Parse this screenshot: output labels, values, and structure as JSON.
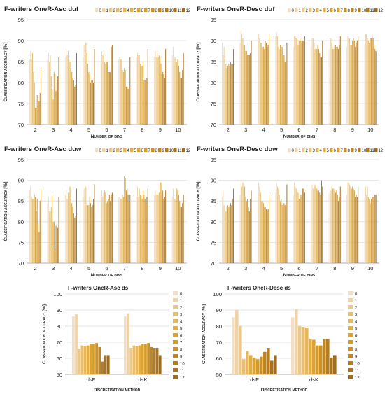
{
  "palette": [
    "#f3dfc5",
    "#efd3a8",
    "#ebc98b",
    "#e8bf72",
    "#e6b85b",
    "#e2ad45",
    "#dca232",
    "#d49a2a",
    "#cb9027",
    "#c08624",
    "#b57d22",
    "#aa741f",
    "#a06c1e"
  ],
  "chart_data": [
    {
      "type": "bar",
      "title": "F-writers OneR-Asc duf",
      "xlabel": "Number of bins",
      "ylabel": "Classification accuracy [%]",
      "ylim": [
        70,
        95
      ],
      "yticks": [
        70,
        75,
        80,
        85,
        90,
        95
      ],
      "grid": true,
      "legend_position": "top-right",
      "legend": [
        "0",
        "1",
        "2",
        "3",
        "4",
        "5",
        "6",
        "7",
        "8",
        "9",
        "10",
        "11",
        "12"
      ],
      "categories": [
        "2",
        "3",
        "4",
        "5",
        "6",
        "7",
        "8",
        "9",
        "10"
      ],
      "values": [
        [
          85.5,
          87.5,
          85.5,
          87.0,
          82.5,
          80.0,
          74.0,
          74.0,
          77.0,
          76.0,
          75.5,
          77.5,
          83.5
        ],
        [
          85.5,
          87.0,
          85.0,
          86.5,
          81.5,
          78.5,
          76.0,
          82.5,
          82.0,
          78.0,
          80.0,
          81.5,
          86.0
        ],
        [
          86.0,
          88.0,
          86.5,
          87.5,
          85.5,
          85.0,
          83.0,
          82.5,
          81.0,
          80.5,
          79.0,
          79.5,
          87.0
        ],
        [
          86.0,
          89.0,
          86.5,
          89.5,
          87.0,
          84.5,
          82.5,
          82.0,
          80.0,
          80.5,
          80.5,
          80.0,
          88.0
        ],
        [
          86.0,
          87.5,
          86.5,
          87.0,
          85.0,
          84.5,
          85.0,
          85.0,
          82.5,
          82.5,
          82.5,
          88.5,
          89.0
        ],
        [
          85.5,
          86.0,
          85.5,
          85.5,
          83.0,
          82.5,
          83.5,
          83.0,
          79.0,
          79.0,
          78.5,
          79.0,
          86.0
        ],
        [
          86.0,
          87.0,
          86.5,
          86.5,
          84.5,
          84.0,
          84.0,
          85.0,
          80.5,
          80.5,
          80.5,
          81.0,
          88.0
        ],
        [
          86.0,
          87.5,
          86.0,
          87.0,
          86.0,
          86.5,
          86.0,
          84.5,
          82.0,
          82.5,
          82.0,
          81.0,
          88.0
        ],
        [
          86.5,
          88.5,
          85.5,
          86.0,
          85.5,
          85.0,
          85.5,
          84.0,
          82.5,
          81.0,
          81.0,
          83.0,
          87.0
        ]
      ]
    },
    {
      "type": "bar",
      "title": "F-writers OneR-Desc duf",
      "xlabel": "Number of bins",
      "ylabel": "Classification accuracy [%]",
      "ylim": [
        70,
        95
      ],
      "yticks": [
        70,
        75,
        80,
        85,
        90,
        95
      ],
      "grid": true,
      "legend_position": "top-right",
      "legend": [
        "0",
        "1",
        "2",
        "3",
        "4",
        "5",
        "6",
        "7",
        "8",
        "9",
        "10",
        "11",
        "12"
      ],
      "categories": [
        "2",
        "3",
        "4",
        "5",
        "6",
        "7",
        "8",
        "9",
        "10"
      ],
      "values": [
        [
          89.5,
          86.5,
          88.5,
          85.5,
          84.5,
          83.5,
          84.0,
          84.5,
          84.0,
          85.0,
          84.5,
          84.5,
          88.0
        ],
        [
          89.5,
          92.5,
          91.5,
          90.5,
          89.0,
          89.0,
          87.5,
          87.5,
          86.5,
          86.5,
          86.5,
          87.0,
          90.0
        ],
        [
          91.5,
          91.5,
          90.5,
          89.5,
          89.5,
          88.5,
          88.5,
          88.0,
          90.0,
          89.5,
          88.5,
          89.0,
          91.5
        ],
        [
          91.0,
          92.0,
          91.0,
          88.5,
          88.0,
          89.0,
          88.5,
          88.5,
          86.5,
          86.5,
          85.0,
          85.0,
          89.5
        ],
        [
          88.5,
          91.0,
          91.0,
          90.5,
          90.5,
          89.0,
          90.0,
          90.5,
          90.0,
          89.5,
          90.0,
          90.0,
          91.0
        ],
        [
          88.5,
          90.5,
          90.5,
          89.5,
          88.0,
          87.0,
          88.0,
          89.0,
          88.0,
          87.0,
          86.0,
          86.0,
          90.0
        ],
        [
          88.0,
          90.5,
          90.5,
          89.5,
          88.0,
          88.0,
          89.0,
          89.0,
          88.5,
          88.5,
          88.0,
          89.0,
          91.0
        ],
        [
          88.5,
          91.0,
          90.5,
          90.5,
          89.0,
          89.0,
          90.0,
          90.5,
          90.0,
          88.5,
          89.5,
          90.0,
          91.0
        ],
        [
          89.0,
          91.5,
          91.5,
          90.5,
          90.0,
          89.5,
          90.5,
          90.5,
          91.0,
          90.5,
          89.0,
          88.0,
          87.5
        ]
      ]
    },
    {
      "type": "bar",
      "title": "F-writers OneR-Asc duw",
      "xlabel": "Number of bins",
      "ylabel": "Classification accuracy [%]",
      "ylim": [
        70,
        95
      ],
      "yticks": [
        70,
        75,
        80,
        85,
        90,
        95
      ],
      "grid": true,
      "legend_position": "top-right",
      "legend": [
        "0",
        "1",
        "2",
        "3",
        "4",
        "5",
        "6",
        "7",
        "8",
        "9",
        "10",
        "11",
        "12"
      ],
      "categories": [
        "2",
        "3",
        "4",
        "5",
        "6",
        "7",
        "8",
        "9",
        "10"
      ],
      "values": [
        [
          87.5,
          88.5,
          86.0,
          85.5,
          85.5,
          86.5,
          86.0,
          82.5,
          85.5,
          79.5,
          77.5,
          85.0,
          88.0
        ],
        [
          84.5,
          86.0,
          82.5,
          82.5,
          83.5,
          86.5,
          80.0,
          80.0,
          73.5,
          79.0,
          79.5,
          78.5,
          86.0
        ],
        [
          86.5,
          88.0,
          85.5,
          87.0,
          87.0,
          88.5,
          85.5,
          84.5,
          83.5,
          82.0,
          81.0,
          81.5,
          88.0
        ],
        [
          86.0,
          88.0,
          84.5,
          88.5,
          84.0,
          84.0,
          84.0,
          86.0,
          84.5,
          83.5,
          84.0,
          85.5,
          89.0
        ],
        [
          86.0,
          87.5,
          86.0,
          87.0,
          87.5,
          87.0,
          84.5,
          85.0,
          85.5,
          86.5,
          85.0,
          86.5,
          87.0
        ],
        [
          86.0,
          86.0,
          85.5,
          85.5,
          86.5,
          86.0,
          91.0,
          90.5,
          87.5,
          88.0,
          86.5,
          85.0,
          86.5
        ],
        [
          86.0,
          88.5,
          86.0,
          88.0,
          86.5,
          86.5,
          85.5,
          87.5,
          86.5,
          85.5,
          84.5,
          86.0,
          88.0
        ],
        [
          86.5,
          87.5,
          86.5,
          87.0,
          86.5,
          87.0,
          89.5,
          89.5,
          86.5,
          87.5,
          85.5,
          86.0,
          87.5
        ],
        [
          86.0,
          88.0,
          85.5,
          85.5,
          85.0,
          88.0,
          87.5,
          86.5,
          85.0,
          83.5,
          83.5,
          84.5,
          86.5
        ]
      ]
    },
    {
      "type": "bar",
      "title": "F-writers OneR-Desc duw",
      "xlabel": "Number of bins",
      "ylabel": "Classification accuracy [%]",
      "ylim": [
        70,
        95
      ],
      "yticks": [
        70,
        75,
        80,
        85,
        90,
        95
      ],
      "grid": true,
      "legend_position": "top-right",
      "legend": [
        "0",
        "1",
        "2",
        "3",
        "4",
        "5",
        "6",
        "7",
        "8",
        "9",
        "10",
        "11",
        "12"
      ],
      "categories": [
        "2",
        "3",
        "4",
        "5",
        "6",
        "7",
        "8",
        "9",
        "10"
      ],
      "values": [
        [
          86.0,
          87.5,
          84.0,
          80.5,
          82.5,
          83.5,
          84.0,
          83.5,
          84.0,
          84.5,
          84.0,
          85.5,
          88.0
        ],
        [
          86.5,
          90.0,
          88.5,
          89.5,
          88.5,
          88.5,
          86.0,
          85.0,
          85.5,
          83.5,
          82.5,
          85.5,
          87.5
        ],
        [
          87.0,
          89.5,
          88.5,
          87.0,
          85.0,
          85.0,
          84.5,
          83.5,
          83.5,
          83.0,
          82.5,
          83.0,
          86.5
        ],
        [
          87.0,
          89.5,
          88.5,
          88.0,
          86.5,
          85.0,
          85.5,
          84.0,
          84.0,
          84.5,
          84.0,
          84.5,
          89.0
        ],
        [
          86.5,
          89.5,
          88.5,
          88.0,
          87.5,
          87.0,
          85.5,
          86.0,
          86.5,
          86.0,
          88.0,
          88.0,
          87.0
        ],
        [
          87.5,
          89.0,
          88.0,
          88.5,
          89.0,
          88.5,
          88.0,
          87.5,
          87.5,
          87.0,
          86.5,
          90.0,
          88.5
        ],
        [
          87.0,
          88.0,
          87.5,
          88.5,
          88.0,
          88.0,
          87.5,
          87.0,
          87.5,
          86.5,
          85.0,
          86.0,
          88.5
        ],
        [
          86.5,
          89.5,
          89.5,
          89.0,
          88.5,
          88.0,
          88.5,
          88.0,
          87.5,
          86.0,
          86.5,
          86.0,
          88.5
        ],
        [
          86.0,
          88.5,
          86.5,
          88.5,
          86.0,
          85.5,
          84.5,
          85.5,
          86.0,
          86.0,
          86.0,
          86.5,
          86.5
        ]
      ]
    },
    {
      "type": "bar",
      "title": "F-writers OneR-Asc ds",
      "xlabel": "Discretisation method",
      "ylabel": "Classification accuracy [%]",
      "ylim": [
        50,
        100
      ],
      "yticks": [
        50,
        60,
        70,
        80,
        90,
        100
      ],
      "grid": true,
      "legend_position": "right",
      "legend": [
        "0",
        "1",
        "2",
        "3",
        "4",
        "5",
        "6",
        "7",
        "8",
        "9",
        "10",
        "11",
        "12"
      ],
      "categories": [
        "dsF",
        "dsK"
      ],
      "values": [
        [
          86.0,
          87.5,
          66.0,
          68.0,
          67.5,
          68.0,
          69.0,
          69.0,
          69.5,
          67.0,
          58.0,
          62.0,
          62.0
        ],
        [
          86.0,
          88.0,
          66.5,
          68.0,
          67.5,
          68.0,
          69.0,
          69.0,
          69.5,
          67.0,
          66.5,
          66.5,
          62.0
        ]
      ]
    },
    {
      "type": "bar",
      "title": "F-writers OneR-Desc ds",
      "xlabel": "Discretisation method",
      "ylabel": "Classification accuracy [%]",
      "ylim": [
        50,
        100
      ],
      "yticks": [
        50,
        60,
        70,
        80,
        90,
        100
      ],
      "grid": true,
      "legend_position": "right",
      "legend": [
        "0",
        "1",
        "2",
        "3",
        "4",
        "5",
        "6",
        "7",
        "8",
        "9",
        "10",
        "11",
        "12"
      ],
      "categories": [
        "dsF",
        "dsK"
      ],
      "values": [
        [
          85.5,
          90.0,
          80.0,
          59.5,
          64.5,
          62.0,
          60.5,
          59.5,
          61.0,
          64.0,
          66.5,
          58.5,
          62.0
        ],
        [
          85.5,
          90.5,
          80.0,
          79.5,
          79.0,
          72.0,
          71.5,
          68.0,
          68.0,
          72.0,
          72.0,
          60.5,
          62.0
        ]
      ]
    }
  ]
}
